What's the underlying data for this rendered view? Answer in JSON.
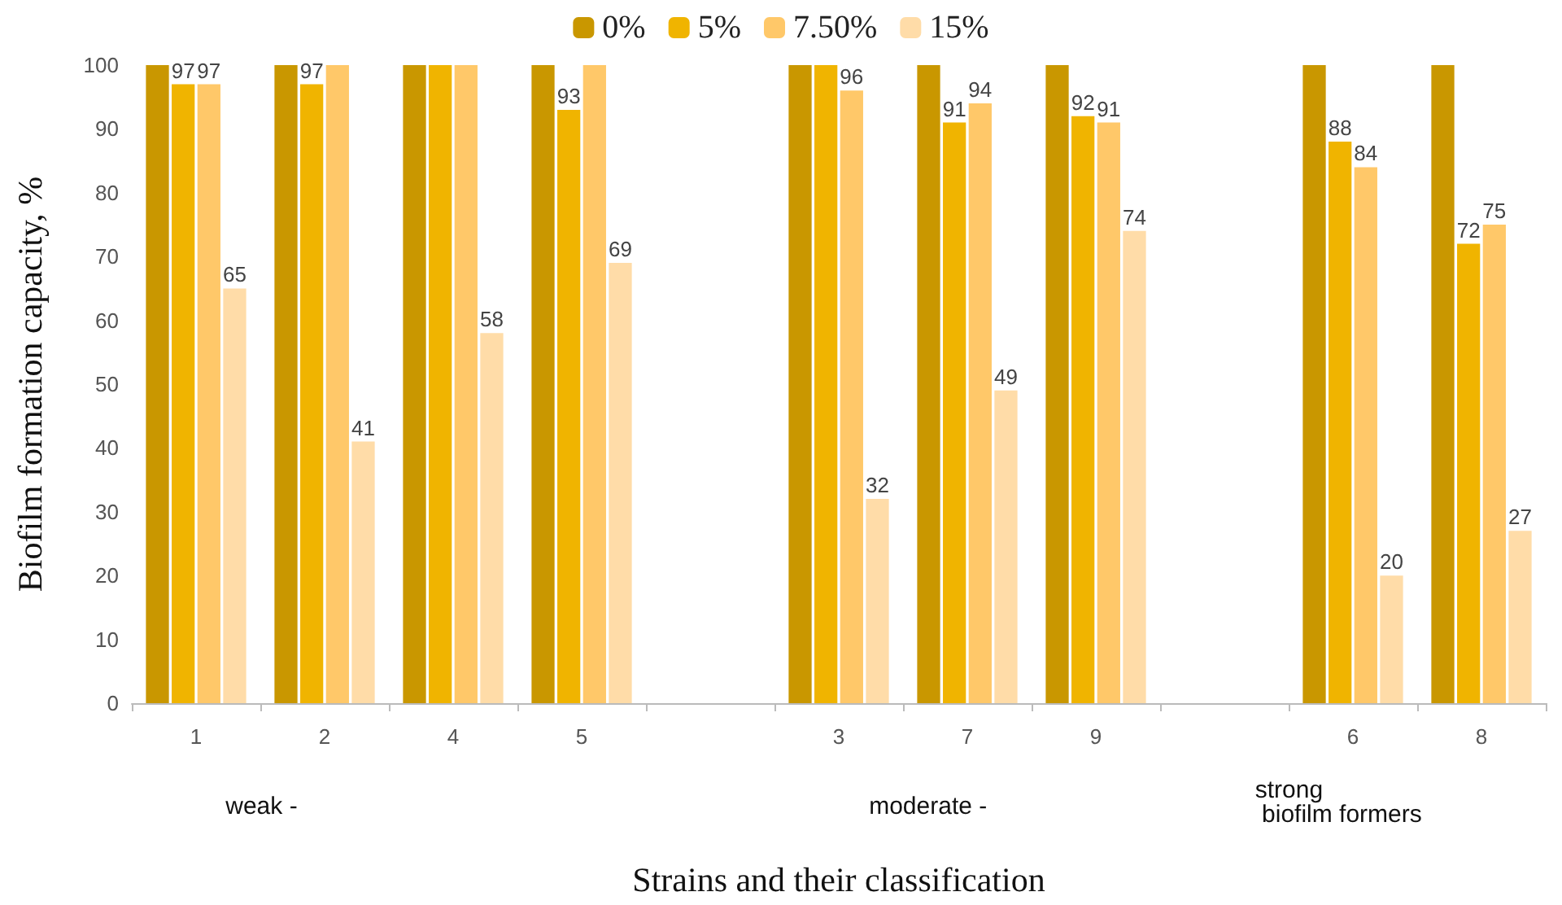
{
  "chart_data": {
    "type": "bar",
    "xlabel": "Strains and their classification",
    "ylabel": "Biofilm formation capacity, %",
    "categories": [
      "1",
      "2",
      "4",
      "5",
      null,
      "3",
      "7",
      "9",
      null,
      "6",
      "8"
    ],
    "series": [
      {
        "name": "0%",
        "color": "#c99700",
        "values": [
          100,
          100,
          100,
          100,
          null,
          100,
          100,
          100,
          null,
          100,
          100
        ]
      },
      {
        "name": "5%",
        "color": "#f0b400",
        "values": [
          97,
          97,
          100,
          93,
          null,
          100,
          91,
          92,
          null,
          88,
          72
        ],
        "value_labels": [
          "97",
          "97",
          null,
          "93",
          null,
          null,
          "91",
          "92",
          null,
          "88",
          "72"
        ]
      },
      {
        "name": "7.50%",
        "color": "#ffc869",
        "values": [
          97,
          100,
          100,
          100,
          null,
          96,
          94,
          91,
          null,
          84,
          75
        ],
        "value_labels": [
          "97",
          null,
          null,
          null,
          null,
          "96",
          "94",
          "91",
          null,
          "84",
          "75"
        ]
      },
      {
        "name": "15%",
        "color": "#ffdca8",
        "values": [
          65,
          41,
          58,
          69,
          null,
          32,
          49,
          74,
          null,
          20,
          27
        ],
        "value_labels": [
          "65",
          "41",
          "58",
          "69",
          null,
          "32",
          "49",
          "74",
          null,
          "20",
          "27"
        ]
      }
    ],
    "ylim": [
      0,
      100
    ],
    "yticks": [
      0,
      10,
      20,
      30,
      40,
      50,
      60,
      70,
      80,
      90,
      100
    ],
    "grid": false,
    "legend": "top",
    "annotations": [
      "weak -",
      "moderate -",
      "strong\n biofilm formers"
    ]
  }
}
